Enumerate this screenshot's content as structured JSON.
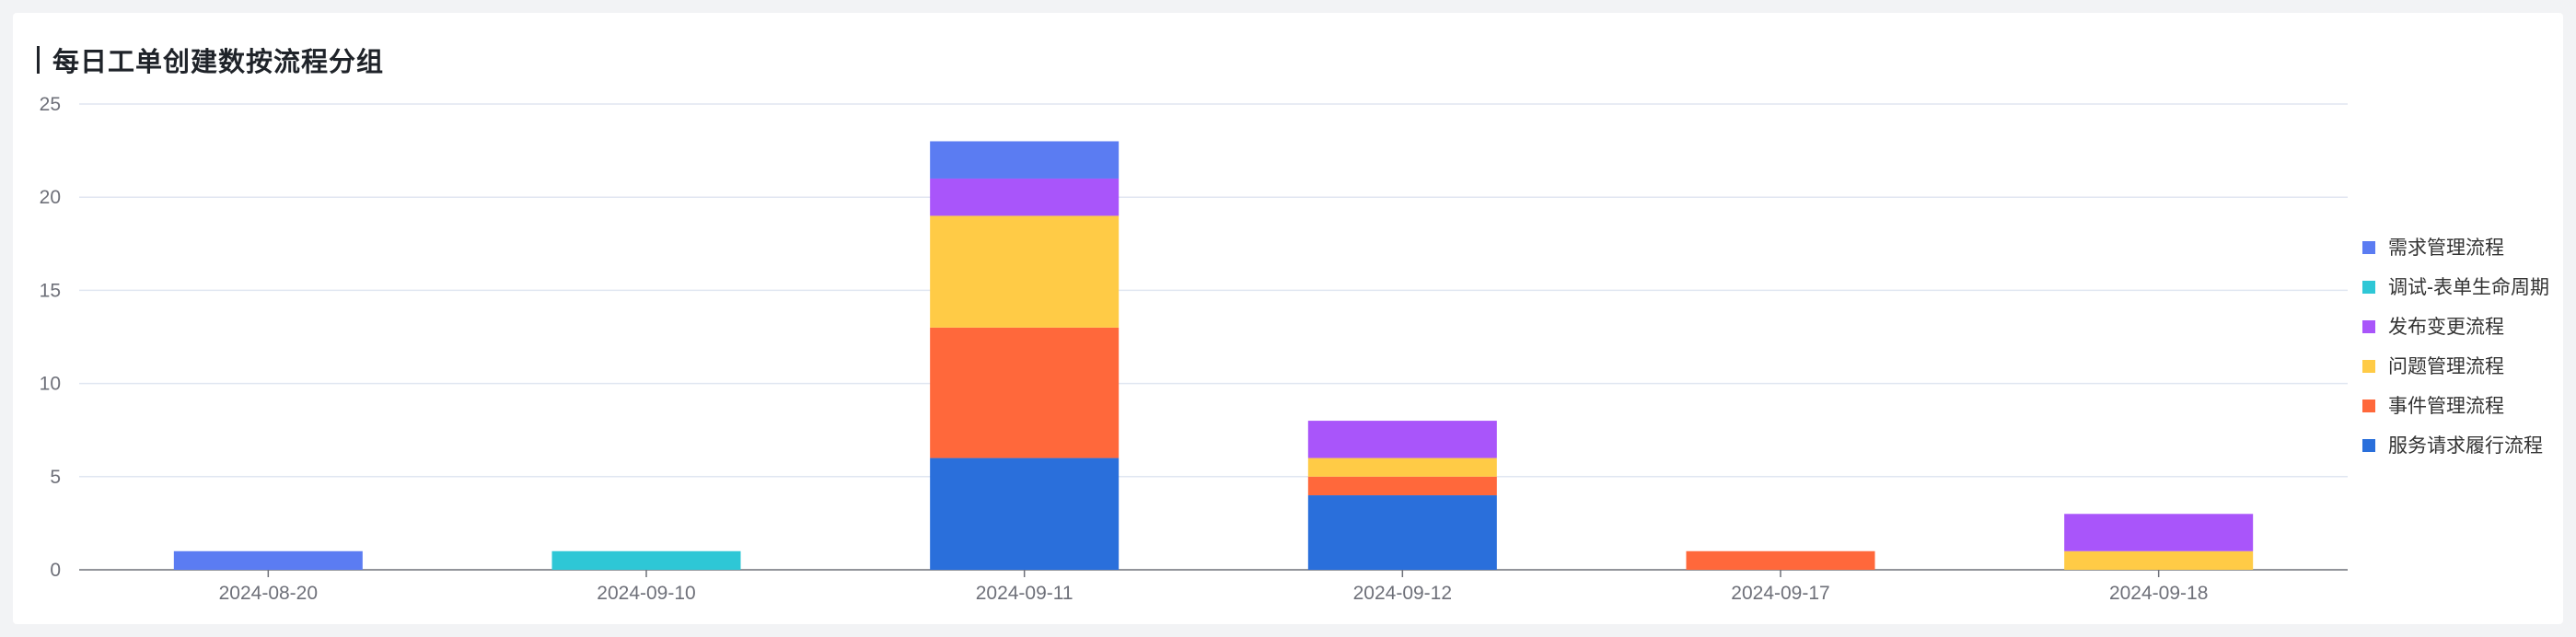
{
  "chart_data": {
    "type": "bar",
    "stacked": true,
    "title": "每日工单创建数按流程分组",
    "xlabel": "",
    "ylabel": "",
    "ylim": [
      0,
      25
    ],
    "yticks": [
      0,
      5,
      10,
      15,
      20,
      25
    ],
    "grid": true,
    "legend_position": "right",
    "categories": [
      "2024-08-20",
      "2024-09-10",
      "2024-09-11",
      "2024-09-12",
      "2024-09-17",
      "2024-09-18"
    ],
    "series": [
      {
        "name": "服务请求履行流程",
        "color": "#2a6fdb",
        "values": [
          0,
          0,
          6,
          4,
          0,
          0
        ]
      },
      {
        "name": "事件管理流程",
        "color": "#ff683b",
        "values": [
          0,
          0,
          7,
          1,
          1,
          0
        ]
      },
      {
        "name": "问题管理流程",
        "color": "#ffcb46",
        "values": [
          0,
          0,
          6,
          1,
          0,
          1
        ]
      },
      {
        "name": "发布变更流程",
        "color": "#a955fa",
        "values": [
          0,
          0,
          2,
          2,
          0,
          2
        ]
      },
      {
        "name": "调试-表单生命周期",
        "color": "#2ec7d6",
        "values": [
          0,
          1,
          0,
          0,
          0,
          0
        ]
      },
      {
        "name": "需求管理流程",
        "color": "#5b7cf2",
        "values": [
          1,
          0,
          2,
          0,
          0,
          0
        ]
      }
    ]
  }
}
